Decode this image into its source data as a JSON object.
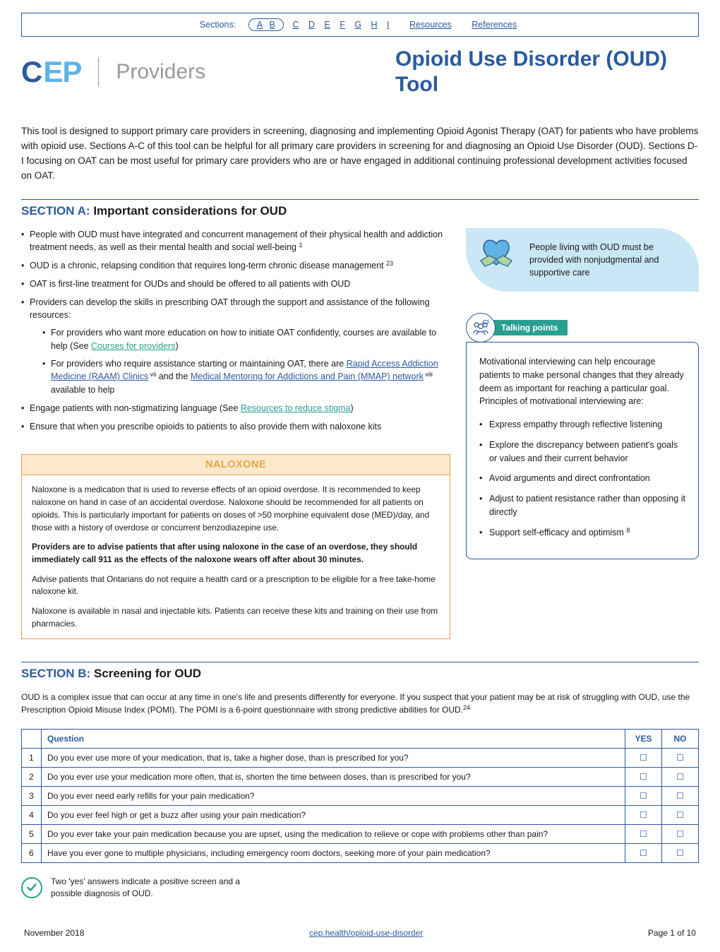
{
  "nav": {
    "label": "Sections:",
    "items": [
      "A",
      "B",
      "C",
      "D",
      "E",
      "F",
      "G",
      "H",
      "I"
    ],
    "resources": "Resources",
    "references": "References"
  },
  "logo": {
    "c": "C",
    "ep": "EP",
    "providers": "Providers"
  },
  "title": "Opioid Use Disorder (OUD) Tool",
  "intro": "This tool is designed to support primary care providers in screening, diagnosing and implementing Opioid Agonist Therapy (OAT) for patients who have problems with opioid use. Sections A-C of this tool can be helpful for all primary care providers in screening for and diagnosing an Opioid Use Disorder (OUD). Sections D-I focusing on OAT can be most useful for primary care providers who are or have engaged in additional continuing professional development activities focused on OAT.",
  "sectionA": {
    "label": "SECTION A:",
    "title": "Important considerations for OUD",
    "bullets": {
      "b1a": "People with OUD must have integrated and concurrent management of their physical health and addiction treatment needs, as well as their mental health and social well-being ",
      "b1sup": "1",
      "b2a": "OUD is a chronic, relapsing condition that requires long-term chronic disease management ",
      "b2sup": "23",
      "b3": "OAT is first-line treatment for OUDs and should be offered to all patients with OUD",
      "b4": "Providers can develop the skills in prescribing OAT  through the support and assistance of the following resources:",
      "b4s1a": "For providers who want more education on how to initiate OAT confidently, courses are available to help (See ",
      "b4s1link": "Courses for providers",
      "b4s1c": ")",
      "b4s2a": "For providers who require assistance starting or maintaining OAT, there are ",
      "b4s2link1": "Rapid Access Addiction Medicine (RAAM) Clinics",
      "b4s2sup1": " vii",
      "b4s2mid": " and the ",
      "b4s2link2": "Medical Mentoring for Addictions and Pain (MMAP) network",
      "b4s2sup2": " viii",
      "b4s2end": " available to help",
      "b5a": "Engage patients with non-stigmatizing language (See ",
      "b5link": "Resources to reduce stigma",
      "b5c": ")",
      "b6": "Ensure that when you prescribe opioids to patients to also provide them with naloxone kits"
    },
    "care": "People living with OUD must be provided with nonjudgmental and supportive care",
    "talking": {
      "label": "Talking points",
      "intro": "Motivational interviewing can help encourage patients to make personal changes that they already deem as important for reaching a particular goal. Principles of motivational interviewing are:",
      "p1": "Express empathy through reflective listening",
      "p2": "Explore the discrepancy between patient's goals or values and their current behavior",
      "p3": "Avoid arguments and direct confrontation",
      "p4": "Adjust to patient resistance rather than opposing it directly",
      "p5a": "Support self-efficacy and optimism ",
      "p5sup": "8"
    },
    "naloxone": {
      "title": "NALOXONE",
      "p1": "Naloxone is a medication that is used to reverse effects of an opioid overdose. It is recommended to keep naloxone on hand in case of an accidental overdose. Naloxone should be recommended for all patients on opioids. This is particularly important for patients on doses of >50 morphine equivalent dose (MED)/day, and those with a history of overdose or concurrent benzodiazepine use.",
      "p2": "Providers are to advise patients that after using naloxone in the case of an overdose, they should immediately call 911 as the effects of the naloxone wears off after about 30 minutes.",
      "p3": "Advise patients that Ontarians do not require a health card or a prescription to be eligible for a free take-home naloxone kit.",
      "p4": "Naloxone is available in nasal and injectable kits. Patients can receive these kits and training on their use from pharmacies."
    }
  },
  "sectionB": {
    "label": "SECTION B:",
    "title": "Screening for OUD",
    "introA": "OUD is a complex issue that can occur at any time in one's life and presents differently for everyone. If you suspect that your patient may be at risk of struggling with OUD, use the Prescription Opioid Misuse Index (POMI). The POMI is a 6-point questionnaire with strong predictive abilities for OUD.",
    "introSup": "24",
    "table": {
      "hQuestion": "Question",
      "hYes": "YES",
      "hNo": "NO",
      "rows": [
        {
          "n": "1",
          "q": "Do you ever use more of your medication, that is, take a higher dose, than is prescribed for you?"
        },
        {
          "n": "2",
          "q": "Do you ever use your medication more often, that is, shorten the time between doses, than is prescribed for you?"
        },
        {
          "n": "3",
          "q": "Do you ever need early refills for your pain medication?"
        },
        {
          "n": "4",
          "q": "Do you ever feel high or get a buzz after using your pain medication?"
        },
        {
          "n": "5",
          "q": "Do you ever take your pain medication because you are upset, using the medication to relieve or cope with problems other than pain?"
        },
        {
          "n": "6",
          "q": "Have you ever gone to multiple physicians, including emergency room doctors, seeking more of your pain medication?"
        }
      ]
    },
    "result": "Two 'yes' answers indicate a positive screen and a possible diagnosis of OUD."
  },
  "footer": {
    "date": "November 2018",
    "link": "cep.health/opioid-use-disorder",
    "page": "Page 1 of 10"
  },
  "colors": {
    "primary": "#2a5a9e",
    "accent": "#5fb3e5",
    "teal": "#2a9e8f",
    "orange": "#e5a442",
    "orangeBg": "#fce9cc",
    "careBg": "#c9e7f5"
  }
}
